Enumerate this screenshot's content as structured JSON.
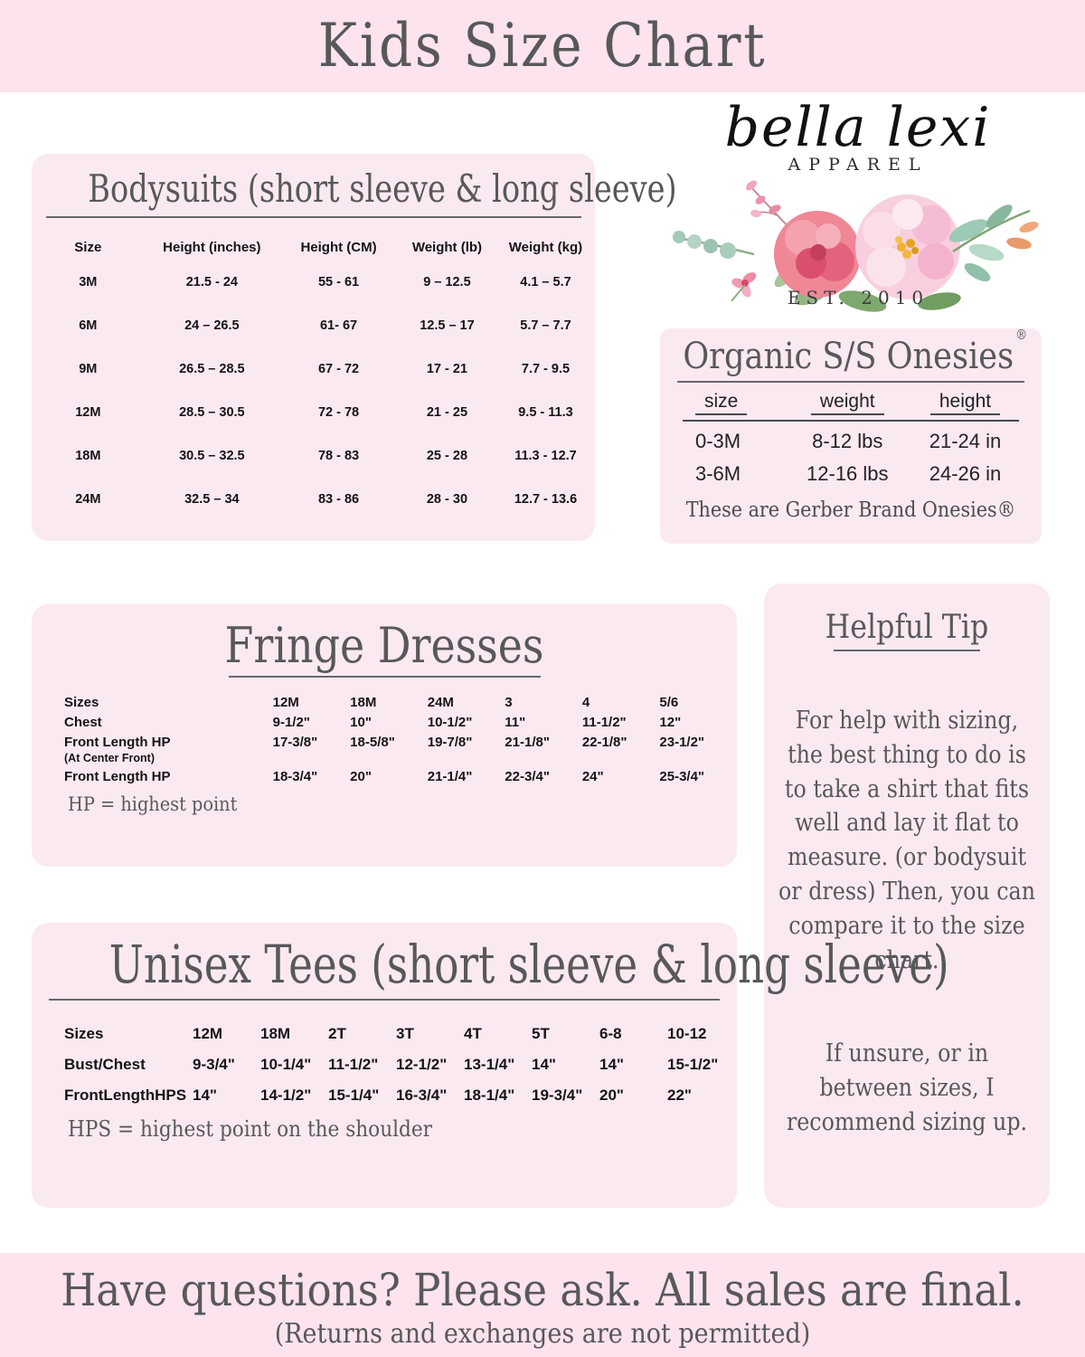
{
  "page": {
    "title": "Kids Size Chart",
    "footer_line1": "Have questions? Please ask. All sales are final.",
    "footer_line2": "(Returns and exchanges are not permitted)"
  },
  "colors": {
    "band_pink": "#fce3ee",
    "card_pink": "#fbe9f2",
    "heading_gray": "#58585b",
    "table_text": "#141416"
  },
  "logo": {
    "script": "bella lexi",
    "subtitle": "APPAREL",
    "established": "EST. 2010"
  },
  "bodysuits": {
    "title": "Bodysuits (short sleeve & long sleeve)",
    "headers": [
      "Size",
      "Height (inches)",
      "Height (CM)",
      "Weight (lb)",
      "Weight (kg)"
    ],
    "rows": [
      [
        "3M",
        "21.5 - 24",
        "55 - 61",
        "9 – 12.5",
        "4.1 – 5.7"
      ],
      [
        "6M",
        "24 – 26.5",
        "61- 67",
        "12.5 – 17",
        "5.7 – 7.7"
      ],
      [
        "9M",
        "26.5 – 28.5",
        "67 - 72",
        "17 - 21",
        "7.7 - 9.5"
      ],
      [
        "12M",
        "28.5 – 30.5",
        "72 - 78",
        "21 - 25",
        "9.5 - 11.3"
      ],
      [
        "18M",
        "30.5 – 32.5",
        "78 - 83",
        "25 - 28",
        "11.3 - 12.7"
      ],
      [
        "24M",
        "32.5 – 34",
        "83 - 86",
        "28 - 30",
        "12.7 - 13.6"
      ]
    ]
  },
  "onesies": {
    "title": "Organic S/S Onesies",
    "registered_mark": "®",
    "headers": [
      "size",
      "weight",
      "height"
    ],
    "rows": [
      [
        "0-3M",
        "8-12 lbs",
        "21-24 in"
      ],
      [
        "3-6M",
        "12-16 lbs",
        "24-26 in"
      ]
    ],
    "note": "These are Gerber Brand Onesies®"
  },
  "fringe": {
    "title": "Fringe Dresses",
    "rows": [
      {
        "label": "Sizes",
        "values": [
          "12M",
          "18M",
          "24M",
          "3",
          "4",
          "5/6"
        ]
      },
      {
        "label": "Chest",
        "values": [
          "9-1/2\"",
          "10\"",
          "10-1/2\"",
          "11\"",
          "11-1/2\"",
          "12\""
        ]
      },
      {
        "label": "Front Length HP",
        "sublabel": "(At Center Front)",
        "values": [
          "17-3/8\"",
          "18-5/8\"",
          "19-7/8\"",
          "21-1/8\"",
          "22-1/8\"",
          "23-1/2\""
        ]
      },
      {
        "label": "Front Length HP",
        "values": [
          "18-3/4\"",
          "20\"",
          "21-1/4\"",
          "22-3/4\"",
          "24\"",
          "25-3/4\""
        ]
      }
    ],
    "footnote": "HP = highest point"
  },
  "tip": {
    "title": "Helpful Tip",
    "paragraph1": "For help with sizing, the best thing to do is to take a shirt that fits well and lay it flat to measure. (or bodysuit or dress) Then, you can compare it to the size chart.",
    "paragraph2": "If unsure, or in between sizes, I recommend sizing up."
  },
  "tees": {
    "title": "Unisex Tees (short sleeve & long sleeve)",
    "rows": [
      {
        "label": "Sizes",
        "values": [
          "12M",
          "18M",
          "2T",
          "3T",
          "4T",
          "5T",
          "6-8",
          "10-12"
        ]
      },
      {
        "label": "Bust/Chest",
        "values": [
          "9-3/4\"",
          "10-1/4\"",
          "11-1/2\"",
          "12-1/2\"",
          "13-1/4\"",
          "14\"",
          "14\"",
          "15-1/2\""
        ]
      },
      {
        "label": "FrontLengthHPS",
        "values": [
          "14\"",
          "14-1/2\"",
          "15-1/4\"",
          "16-3/4\"",
          "18-1/4\"",
          "19-3/4\"",
          "20\"",
          "22\""
        ]
      }
    ],
    "footnote": "HPS = highest point on the shoulder"
  }
}
